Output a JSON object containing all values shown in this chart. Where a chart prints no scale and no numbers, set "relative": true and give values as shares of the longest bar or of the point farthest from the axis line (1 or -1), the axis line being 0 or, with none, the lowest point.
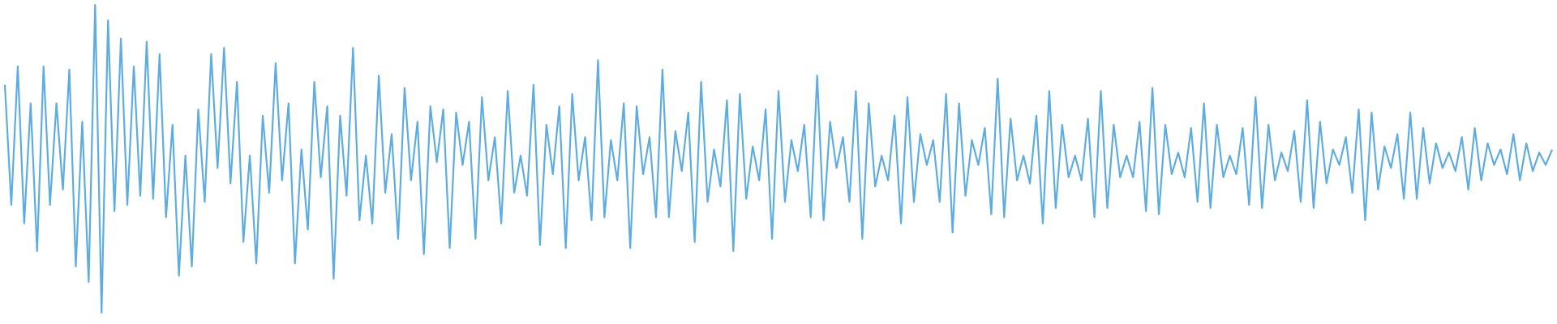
{
  "chart_data": {
    "type": "line",
    "relative": true,
    "tick_labels": false,
    "categories": [
      null,
      null,
      null,
      null,
      null,
      null,
      null,
      null,
      null,
      null,
      null,
      null,
      null,
      null,
      null,
      null,
      null,
      null,
      null,
      null,
      null,
      null,
      null,
      null,
      null,
      null,
      null,
      null,
      null,
      null,
      null,
      null,
      null,
      null,
      null,
      null,
      null,
      null,
      null,
      null,
      null,
      null,
      null,
      null,
      null,
      null,
      null,
      null,
      null,
      null,
      null,
      null,
      null,
      null,
      null,
      null,
      null,
      null,
      null,
      null,
      null,
      null,
      null,
      null,
      null,
      null,
      null,
      null,
      null,
      null,
      null,
      null,
      null,
      null,
      null,
      null,
      null,
      null,
      null,
      null,
      null,
      null,
      null,
      null,
      null,
      null,
      null,
      null,
      null,
      null,
      null,
      null,
      null,
      null,
      null,
      null,
      null,
      null,
      null,
      null,
      null,
      null,
      null,
      null,
      null,
      null,
      null,
      null,
      null,
      null,
      null,
      null,
      null,
      null,
      null,
      null,
      null,
      null,
      null,
      null,
      null,
      null,
      null,
      null,
      null,
      null,
      null,
      null,
      null,
      null,
      null,
      null,
      null,
      null,
      null,
      null,
      null,
      null,
      null,
      null,
      null,
      null,
      null,
      null,
      null,
      null,
      null,
      null,
      null,
      null,
      null,
      null,
      null,
      null,
      null,
      null,
      null,
      null,
      null,
      null,
      null,
      null,
      null,
      null,
      null,
      null,
      null,
      null,
      null,
      null,
      null,
      null,
      null,
      null,
      null,
      null,
      null,
      null,
      null,
      null,
      null,
      null,
      null,
      null,
      null,
      null,
      null,
      null,
      null,
      null,
      null,
      null,
      null,
      null,
      null,
      null,
      null,
      null,
      null,
      null,
      null,
      null,
      null,
      null,
      null,
      null,
      null,
      null,
      null,
      null,
      null,
      null,
      null,
      null,
      null,
      null,
      null,
      null,
      null,
      null,
      null,
      null,
      null,
      null,
      null,
      null,
      null,
      null,
      null,
      null,
      null,
      null,
      null,
      null,
      null,
      null,
      null,
      null,
      null,
      null,
      null
    ],
    "series": [
      {
        "color": "#5dade2",
        "values": [
          0.74,
          0.35,
          0.8,
          0.29,
          0.68,
          0.2,
          0.8,
          0.35,
          0.68,
          0.4,
          0.79,
          0.15,
          0.62,
          0.1,
          1.0,
          0.0,
          0.95,
          0.33,
          0.89,
          0.35,
          0.8,
          0.38,
          0.88,
          0.37,
          0.84,
          0.31,
          0.61,
          0.12,
          0.51,
          0.15,
          0.66,
          0.36,
          0.84,
          0.47,
          0.86,
          0.42,
          0.75,
          0.23,
          0.51,
          0.16,
          0.64,
          0.39,
          0.81,
          0.43,
          0.68,
          0.16,
          0.53,
          0.27,
          0.75,
          0.44,
          0.67,
          0.11,
          0.64,
          0.38,
          0.86,
          0.3,
          0.51,
          0.29,
          0.77,
          0.39,
          0.58,
          0.24,
          0.73,
          0.43,
          0.62,
          0.19,
          0.67,
          0.49,
          0.66,
          0.21,
          0.65,
          0.48,
          0.62,
          0.24,
          0.7,
          0.43,
          0.57,
          0.29,
          0.72,
          0.39,
          0.51,
          0.38,
          0.74,
          0.22,
          0.61,
          0.45,
          0.67,
          0.21,
          0.71,
          0.43,
          0.57,
          0.3,
          0.82,
          0.31,
          0.56,
          0.43,
          0.68,
          0.21,
          0.67,
          0.45,
          0.57,
          0.31,
          0.79,
          0.31,
          0.59,
          0.46,
          0.65,
          0.23,
          0.75,
          0.36,
          0.53,
          0.41,
          0.69,
          0.2,
          0.71,
          0.37,
          0.54,
          0.43,
          0.66,
          0.24,
          0.72,
          0.36,
          0.56,
          0.46,
          0.61,
          0.31,
          0.77,
          0.3,
          0.62,
          0.47,
          0.57,
          0.36,
          0.72,
          0.24,
          0.68,
          0.41,
          0.51,
          0.43,
          0.64,
          0.29,
          0.7,
          0.36,
          0.58,
          0.48,
          0.56,
          0.36,
          0.71,
          0.26,
          0.68,
          0.38,
          0.56,
          0.48,
          0.6,
          0.32,
          0.76,
          0.31,
          0.63,
          0.43,
          0.51,
          0.42,
          0.64,
          0.29,
          0.72,
          0.34,
          0.61,
          0.44,
          0.51,
          0.43,
          0.63,
          0.31,
          0.72,
          0.34,
          0.61,
          0.44,
          0.51,
          0.44,
          0.62,
          0.33,
          0.73,
          0.32,
          0.61,
          0.45,
          0.52,
          0.44,
          0.6,
          0.36,
          0.68,
          0.34,
          0.61,
          0.44,
          0.51,
          0.45,
          0.6,
          0.35,
          0.7,
          0.34,
          0.61,
          0.43,
          0.52,
          0.46,
          0.59,
          0.36,
          0.69,
          0.34,
          0.62,
          0.42,
          0.53,
          0.48,
          0.57,
          0.39,
          0.66,
          0.3,
          0.65,
          0.4,
          0.54,
          0.47,
          0.58,
          0.37,
          0.65,
          0.37,
          0.6,
          0.42,
          0.55,
          0.47,
          0.52,
          0.46,
          0.57,
          0.4,
          0.6,
          0.43,
          0.55,
          0.48,
          0.53,
          0.45,
          0.58,
          0.43,
          0.55,
          0.46,
          0.52,
          0.48,
          0.53
        ]
      }
    ]
  }
}
